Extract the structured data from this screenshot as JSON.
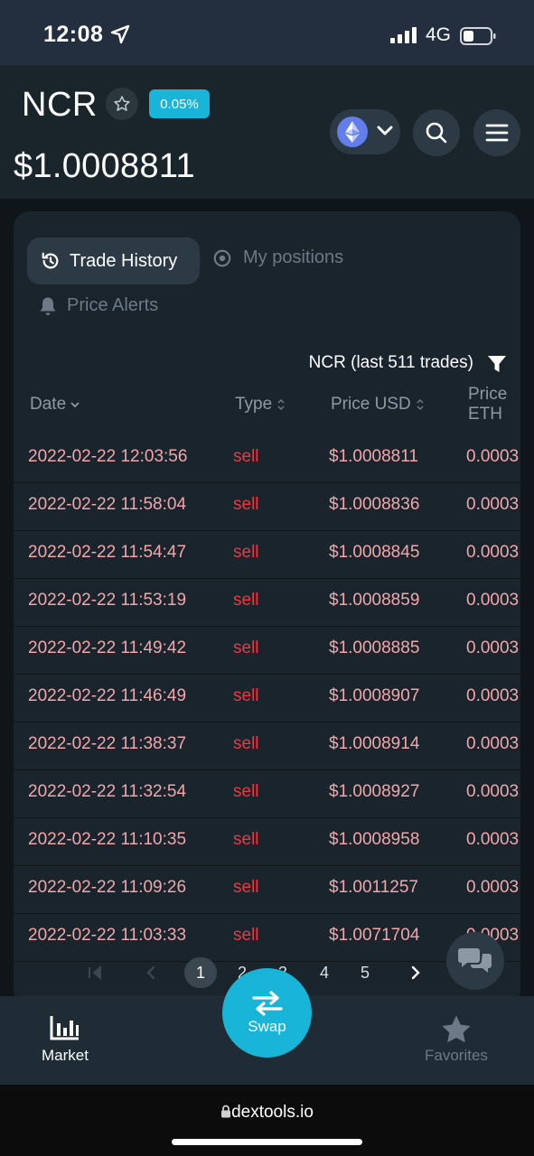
{
  "status_bar": {
    "time": "12:08",
    "network": "4G"
  },
  "header": {
    "token": "NCR",
    "change_badge": "0.05%",
    "price": "$1.0008811",
    "chain_icon": "ethereum-icon"
  },
  "tabs": {
    "trade_history": "Trade History",
    "my_positions": "My positions",
    "price_alerts": "Price Alerts"
  },
  "trades_title": "NCR (last 511 trades)",
  "table": {
    "columns": [
      "Date",
      "Type",
      "Price USD",
      "Price ETH"
    ],
    "rows": [
      {
        "date": "2022-02-22 12:03:56",
        "type": "sell",
        "usd": "$1.0008811",
        "eth": "0.0003"
      },
      {
        "date": "2022-02-22 11:58:04",
        "type": "sell",
        "usd": "$1.0008836",
        "eth": "0.0003"
      },
      {
        "date": "2022-02-22 11:54:47",
        "type": "sell",
        "usd": "$1.0008845",
        "eth": "0.0003"
      },
      {
        "date": "2022-02-22 11:53:19",
        "type": "sell",
        "usd": "$1.0008859",
        "eth": "0.0003"
      },
      {
        "date": "2022-02-22 11:49:42",
        "type": "sell",
        "usd": "$1.0008885",
        "eth": "0.0003"
      },
      {
        "date": "2022-02-22 11:46:49",
        "type": "sell",
        "usd": "$1.0008907",
        "eth": "0.0003"
      },
      {
        "date": "2022-02-22 11:38:37",
        "type": "sell",
        "usd": "$1.0008914",
        "eth": "0.0003"
      },
      {
        "date": "2022-02-22 11:32:54",
        "type": "sell",
        "usd": "$1.0008927",
        "eth": "0.0003"
      },
      {
        "date": "2022-02-22 11:10:35",
        "type": "sell",
        "usd": "$1.0008958",
        "eth": "0.0003"
      },
      {
        "date": "2022-02-22 11:09:26",
        "type": "sell",
        "usd": "$1.0011257",
        "eth": "0.0003"
      },
      {
        "date": "2022-02-22 11:03:33",
        "type": "sell",
        "usd": "$1.0071704",
        "eth": "0.0003"
      }
    ]
  },
  "pagination": {
    "pages": [
      "1",
      "2",
      "3",
      "4",
      "5"
    ],
    "current": "1"
  },
  "bottom_nav": {
    "market": "Market",
    "swap": "Swap",
    "favorites": "Favorites"
  },
  "browser": {
    "url": "dextools.io"
  },
  "colors": {
    "accent": "#19b5d9",
    "sell": "#f0363e",
    "price_text": "#f1a7a9"
  }
}
